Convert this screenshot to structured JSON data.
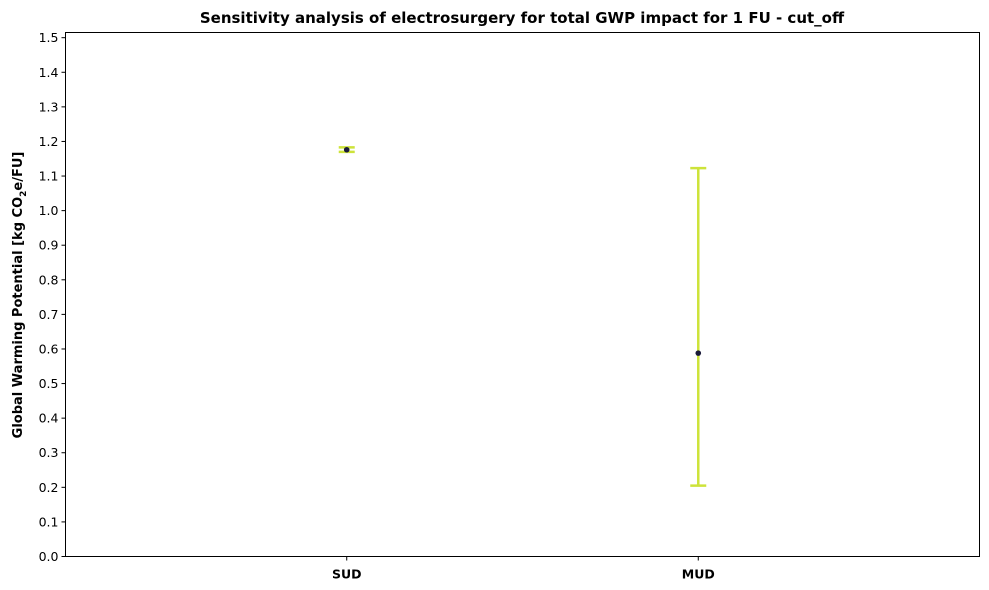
{
  "chart_data": {
    "type": "scatter",
    "title": "Sensitivity analysis of electrosurgery for total GWP impact for 1 FU - cut_off",
    "xlabel": "",
    "ylabel_parts": [
      "Global Warming Potential [kg CO",
      "2",
      "e/FU]"
    ],
    "categories": [
      "SUD",
      "MUD"
    ],
    "values": [
      1.176,
      0.588
    ],
    "error_low": [
      1.17,
      0.205
    ],
    "error_high": [
      1.183,
      1.123
    ],
    "ylim": [
      0,
      1.515
    ],
    "yticks": [
      "0.0",
      "0.1",
      "0.2",
      "0.3",
      "0.4",
      "0.5",
      "0.6",
      "0.7",
      "0.8",
      "0.9",
      "1.0",
      "1.1",
      "1.2",
      "1.3",
      "1.4",
      "1.5"
    ],
    "grid": false,
    "legend": "none",
    "colors": {
      "errorbar": "#cde33a",
      "point": "#1a1a3a"
    }
  }
}
